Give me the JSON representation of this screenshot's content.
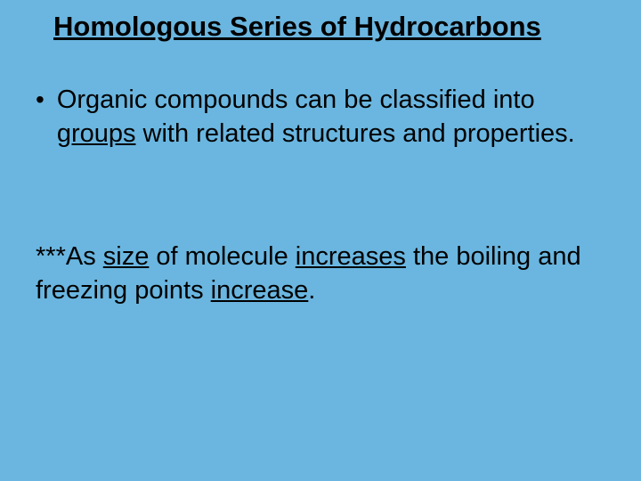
{
  "slide": {
    "background_color": "#6ab6e0",
    "text_color": "#000000",
    "font_family": "Arial",
    "title": {
      "text": "Homologous Series of Hydrocarbons",
      "fontsize": 31,
      "bold": true,
      "underline": true
    },
    "bullet": {
      "marker": "•",
      "pre": "Organic compounds can be classified into ",
      "u1": "groups",
      "post": " with related structures and properties.",
      "fontsize": 29
    },
    "note": {
      "pre": "***As ",
      "u1": "size",
      "mid1": " of molecule ",
      "u2": "increases",
      "mid2": " the boiling and freezing points ",
      "u3": "increase",
      "post": ".",
      "fontsize": 29
    }
  }
}
